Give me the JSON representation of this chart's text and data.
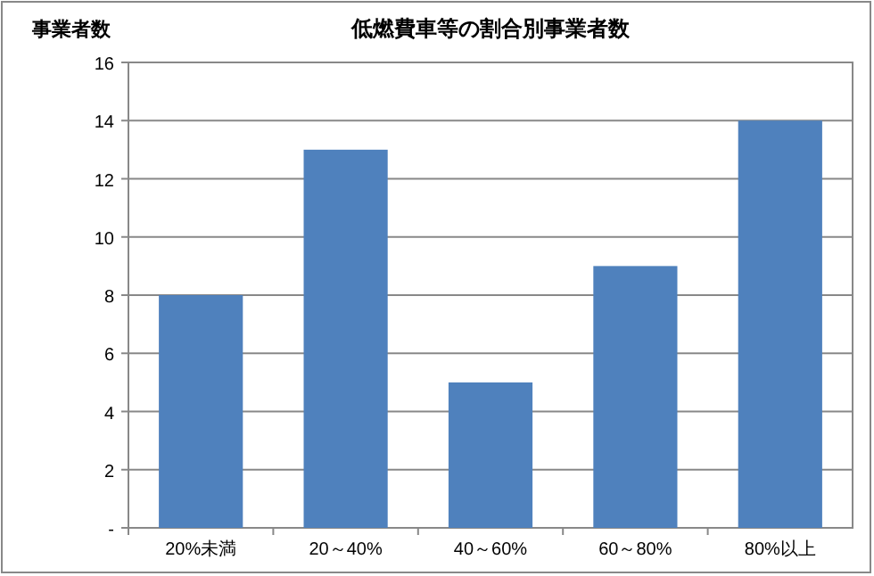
{
  "chart_data": {
    "type": "bar",
    "title": "低燃費車等の割合別事業者数",
    "ylabel": "事業者数",
    "categories": [
      "20%未満",
      "20～40%",
      "40～60%",
      "60～80%",
      "80%以上"
    ],
    "values": [
      8,
      13,
      5,
      9,
      14
    ],
    "color": "#4f81bd",
    "ylim": [
      0,
      16
    ],
    "yticks": [
      {
        "value": 0,
        "label": "-"
      },
      2,
      4,
      6,
      8,
      10,
      12,
      14,
      16
    ],
    "grid": "y"
  }
}
